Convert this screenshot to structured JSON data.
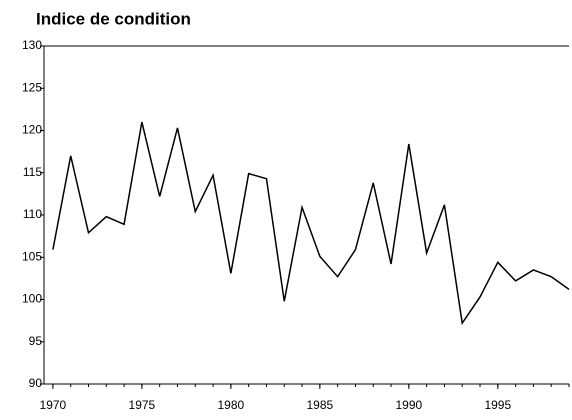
{
  "chart_data": {
    "type": "line",
    "title": "Indice de condition",
    "x": [
      1970,
      1971,
      1972,
      1973,
      1974,
      1975,
      1976,
      1977,
      1978,
      1979,
      1980,
      1981,
      1982,
      1983,
      1984,
      1985,
      1986,
      1987,
      1988,
      1989,
      1990,
      1991,
      1992,
      1993,
      1994,
      1995,
      1996,
      1997,
      1998,
      1999
    ],
    "series": [
      {
        "name": "Indice de condition",
        "color": "#000000",
        "values": [
          105.9,
          117.0,
          107.9,
          109.8,
          108.9,
          121.0,
          112.2,
          120.3,
          110.4,
          114.7,
          103.1,
          114.9,
          114.3,
          99.8,
          110.9,
          105.1,
          102.7,
          105.9,
          113.8,
          104.2,
          118.4,
          105.5,
          111.2,
          97.2,
          100.3,
          104.4,
          102.2,
          103.5,
          102.7,
          101.2
        ]
      }
    ],
    "xlim": [
      1969.5,
      1999
    ],
    "xticks": [
      1970,
      1975,
      1980,
      1985,
      1990,
      1995
    ],
    "ylim": [
      90,
      130
    ],
    "yticks": [
      90,
      95,
      100,
      105,
      110,
      115,
      120,
      125,
      130
    ],
    "grid": false
  }
}
